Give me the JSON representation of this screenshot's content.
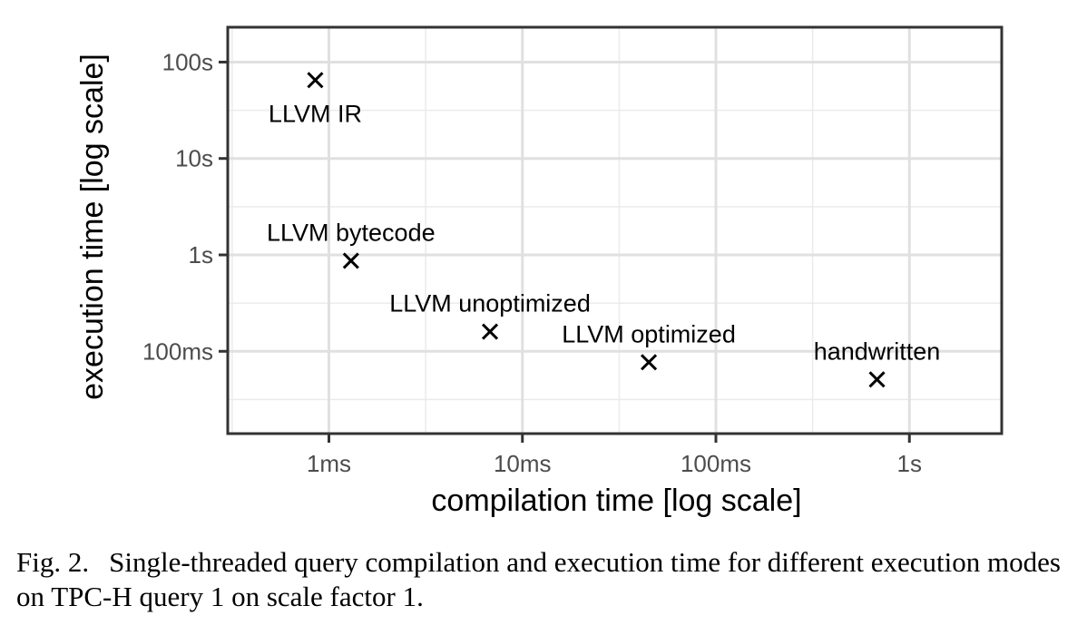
{
  "chart_data": {
    "type": "scatter",
    "title": "",
    "xlabel": "compilation time [log scale]",
    "ylabel": "execution time [log scale]",
    "x_scale": "log",
    "y_scale": "log",
    "xlim": [
      0.0003,
      3
    ],
    "ylim": [
      0.014,
      230
    ],
    "x_ticks": [
      0.001,
      0.01,
      0.1,
      1
    ],
    "x_tick_labels": [
      "1ms",
      "10ms",
      "100ms",
      "1s"
    ],
    "y_ticks": [
      0.1,
      1,
      10,
      100
    ],
    "y_tick_labels": [
      "100ms",
      "1s",
      "10s",
      "100s"
    ],
    "grid": true,
    "marker": "x",
    "points": [
      {
        "label": "LLVM IR",
        "x": 0.00085,
        "y": 65,
        "label_position": "below"
      },
      {
        "label": "LLVM bytecode",
        "x": 0.0013,
        "y": 0.87,
        "label_position": "above"
      },
      {
        "label": "LLVM unoptimized",
        "x": 0.0068,
        "y": 0.16,
        "label_position": "above"
      },
      {
        "label": "LLVM optimized",
        "x": 0.045,
        "y": 0.077,
        "label_position": "above"
      },
      {
        "label": "handwritten",
        "x": 0.68,
        "y": 0.051,
        "label_position": "above"
      }
    ]
  },
  "caption": {
    "figure_number": "Fig. 2.",
    "text": "Single-threaded query compilation and execution time for different execution modes on TPC-H query 1 on scale factor 1."
  }
}
